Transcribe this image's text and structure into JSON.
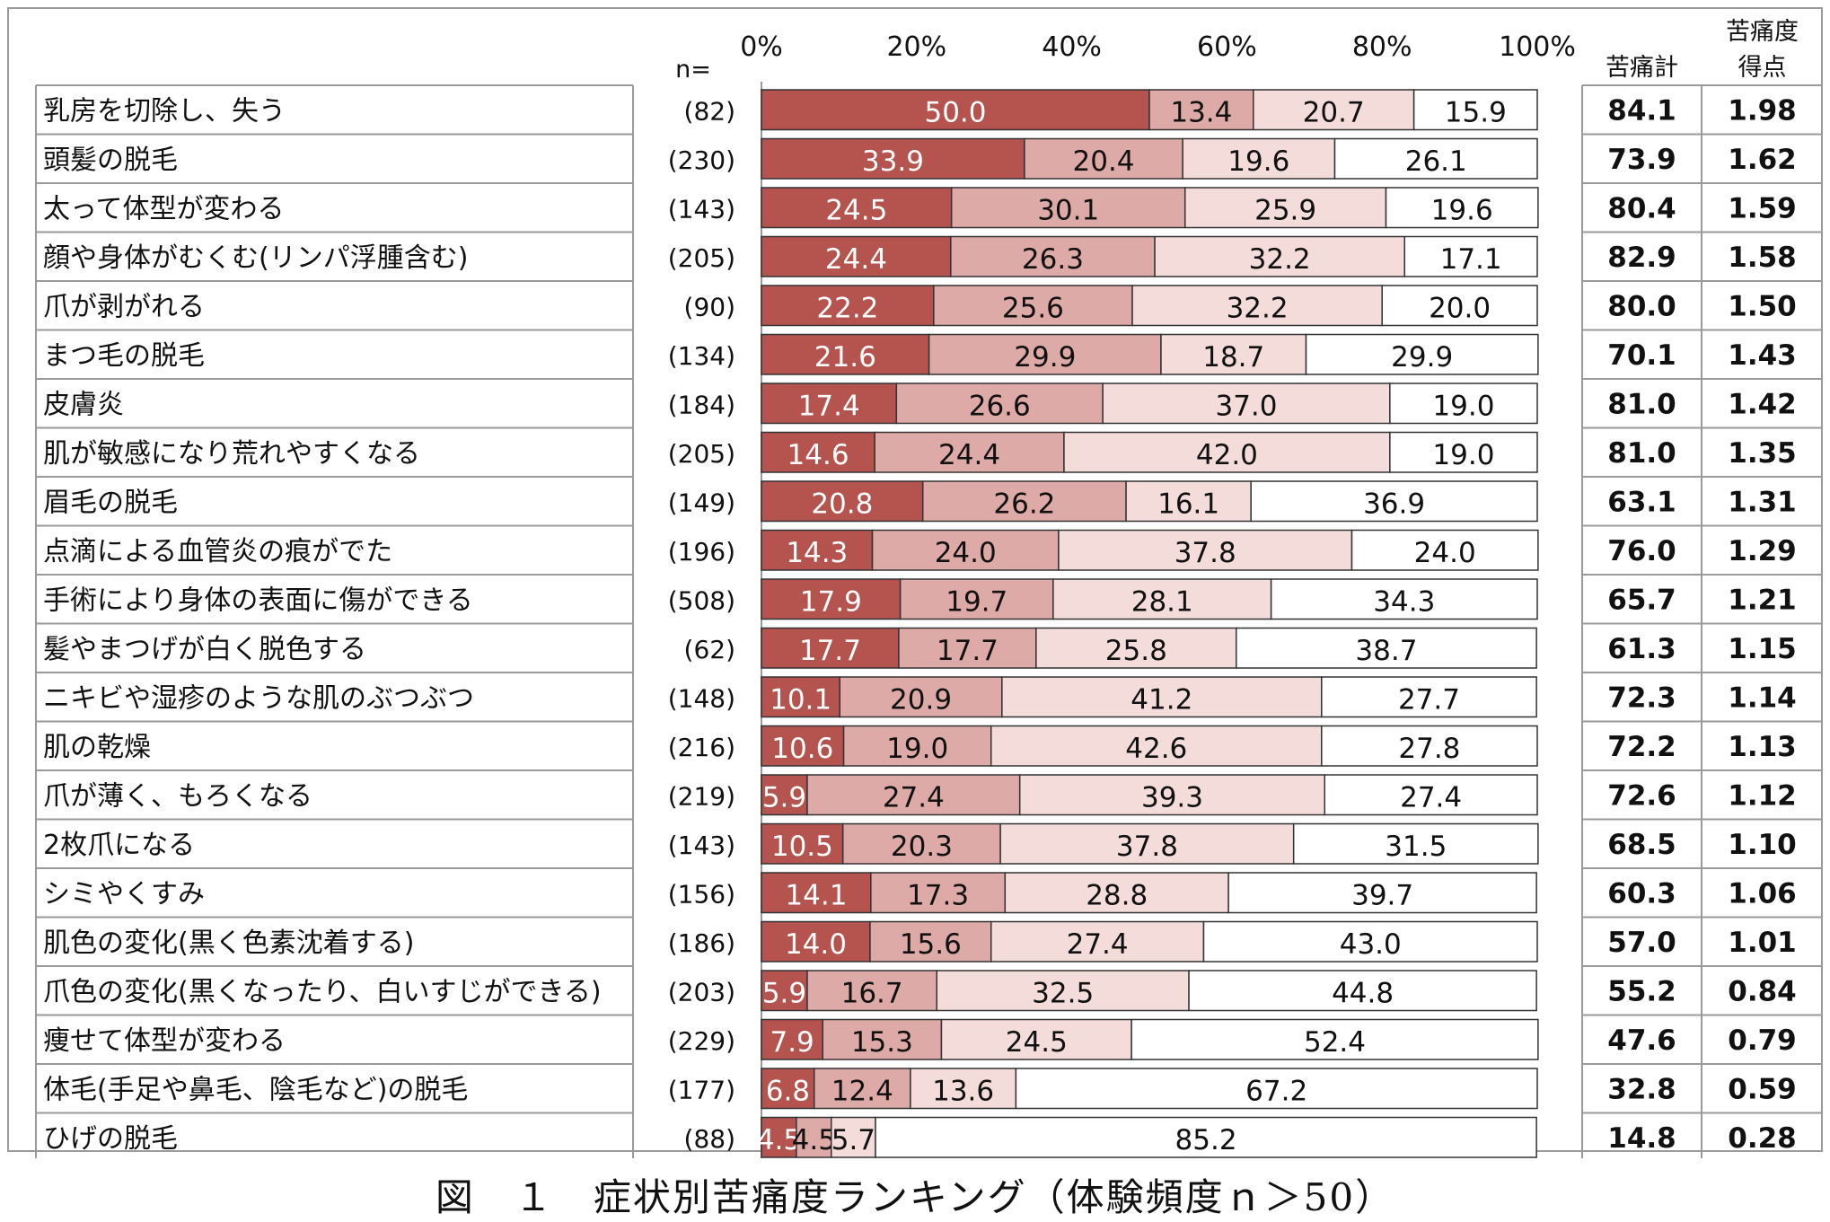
{
  "chart_data": {
    "type": "stacked-bar-horizontal",
    "xlim": [
      0,
      100
    ],
    "ticks": [
      "0%",
      "20%",
      "40%",
      "60%",
      "80%",
      "100%"
    ],
    "n_header": "n=",
    "col_total_header": "苦痛計",
    "col_score_header_line1": "苦痛度",
    "col_score_header_line2": "得点",
    "series_colors": [
      "#b5534f",
      "#deaaa7",
      "#f3dcda",
      "#ffffff"
    ],
    "rows": [
      {
        "label": "乳房を切除し、失う",
        "n": "(82)",
        "values": [
          50.0,
          13.4,
          20.7,
          15.9
        ],
        "value_labels": [
          "50.0",
          "13.4",
          "20.7",
          "15.9"
        ],
        "total": "84.1",
        "score": "1.98"
      },
      {
        "label": "頭髪の脱毛",
        "n": "(230)",
        "values": [
          33.9,
          20.4,
          19.6,
          26.1
        ],
        "value_labels": [
          "33.9",
          "20.4",
          "19.6",
          "26.1"
        ],
        "total": "73.9",
        "score": "1.62"
      },
      {
        "label": "太って体型が変わる",
        "n": "(143)",
        "values": [
          24.5,
          30.1,
          25.9,
          19.6
        ],
        "value_labels": [
          "24.5",
          "30.1",
          "25.9",
          "19.6"
        ],
        "total": "80.4",
        "score": "1.59"
      },
      {
        "label": "顔や身体がむくむ(リンパ浮腫含む)",
        "n": "(205)",
        "values": [
          24.4,
          26.3,
          32.2,
          17.1
        ],
        "value_labels": [
          "24.4",
          "26.3",
          "32.2",
          "17.1"
        ],
        "total": "82.9",
        "score": "1.58"
      },
      {
        "label": "爪が剥がれる",
        "n": "(90)",
        "values": [
          22.2,
          25.6,
          32.2,
          20.0
        ],
        "value_labels": [
          "22.2",
          "25.6",
          "32.2",
          "20.0"
        ],
        "total": "80.0",
        "score": "1.50"
      },
      {
        "label": "まつ毛の脱毛",
        "n": "(134)",
        "values": [
          21.6,
          29.9,
          18.7,
          29.9
        ],
        "value_labels": [
          "21.6",
          "29.9",
          "18.7",
          "29.9"
        ],
        "total": "70.1",
        "score": "1.43"
      },
      {
        "label": "皮膚炎",
        "n": "(184)",
        "values": [
          17.4,
          26.6,
          37.0,
          19.0
        ],
        "value_labels": [
          "17.4",
          "26.6",
          "37.0",
          "19.0"
        ],
        "total": "81.0",
        "score": "1.42"
      },
      {
        "label": "肌が敏感になり荒れやすくなる",
        "n": "(205)",
        "values": [
          14.6,
          24.4,
          42.0,
          19.0
        ],
        "value_labels": [
          "14.6",
          "24.4",
          "42.0",
          "19.0"
        ],
        "total": "81.0",
        "score": "1.35"
      },
      {
        "label": "眉毛の脱毛",
        "n": "(149)",
        "values": [
          20.8,
          26.2,
          16.1,
          36.9
        ],
        "value_labels": [
          "20.8",
          "26.2",
          "16.1",
          "36.9"
        ],
        "total": "63.1",
        "score": "1.31"
      },
      {
        "label": "点滴による血管炎の痕がでた",
        "n": "(196)",
        "values": [
          14.3,
          24.0,
          37.8,
          24.0
        ],
        "value_labels": [
          "14.3",
          "24.0",
          "37.8",
          "24.0"
        ],
        "total": "76.0",
        "score": "1.29"
      },
      {
        "label": "手術により身体の表面に傷ができる",
        "n": "(508)",
        "values": [
          17.9,
          19.7,
          28.1,
          34.3
        ],
        "value_labels": [
          "17.9",
          "19.7",
          "28.1",
          "34.3"
        ],
        "total": "65.7",
        "score": "1.21"
      },
      {
        "label": "髪やまつげが白く脱色する",
        "n": "(62)",
        "values": [
          17.7,
          17.7,
          25.8,
          38.7
        ],
        "value_labels": [
          "17.7",
          "17.7",
          "25.8",
          "38.7"
        ],
        "total": "61.3",
        "score": "1.15"
      },
      {
        "label": "ニキビや湿疹のような肌のぶつぶつ",
        "n": "(148)",
        "values": [
          10.1,
          20.9,
          41.2,
          27.7
        ],
        "value_labels": [
          "10.1",
          "20.9",
          "41.2",
          "27.7"
        ],
        "total": "72.3",
        "score": "1.14"
      },
      {
        "label": "肌の乾燥",
        "n": "(216)",
        "values": [
          10.6,
          19.0,
          42.6,
          27.8
        ],
        "value_labels": [
          "10.6",
          "19.0",
          "42.6",
          "27.8"
        ],
        "total": "72.2",
        "score": "1.13"
      },
      {
        "label": "爪が薄く、もろくなる",
        "n": "(219)",
        "values": [
          5.9,
          27.4,
          39.3,
          27.4
        ],
        "value_labels": [
          "5.9",
          "27.4",
          "39.3",
          "27.4"
        ],
        "total": "72.6",
        "score": "1.12"
      },
      {
        "label": "2枚爪になる",
        "n": "(143)",
        "values": [
          10.5,
          20.3,
          37.8,
          31.5
        ],
        "value_labels": [
          "10.5",
          "20.3",
          "37.8",
          "31.5"
        ],
        "total": "68.5",
        "score": "1.10"
      },
      {
        "label": "シミやくすみ",
        "n": "(156)",
        "values": [
          14.1,
          17.3,
          28.8,
          39.7
        ],
        "value_labels": [
          "14.1",
          "17.3",
          "28.8",
          "39.7"
        ],
        "total": "60.3",
        "score": "1.06"
      },
      {
        "label": "肌色の変化(黒く色素沈着する)",
        "n": "(186)",
        "values": [
          14.0,
          15.6,
          27.4,
          43.0
        ],
        "value_labels": [
          "14.0",
          "15.6",
          "27.4",
          "43.0"
        ],
        "total": "57.0",
        "score": "1.01"
      },
      {
        "label": "爪色の変化(黒くなったり、白いすじができる)",
        "n": "(203)",
        "values": [
          5.9,
          16.7,
          32.5,
          44.8
        ],
        "value_labels": [
          "5.9",
          "16.7",
          "32.5",
          "44.8"
        ],
        "total": "55.2",
        "score": "0.84"
      },
      {
        "label": "痩せて体型が変わる",
        "n": "(229)",
        "values": [
          7.9,
          15.3,
          24.5,
          52.4
        ],
        "value_labels": [
          "7.9",
          "15.3",
          "24.5",
          "52.4"
        ],
        "total": "47.6",
        "score": "0.79"
      },
      {
        "label": "体毛(手足や鼻毛、陰毛など)の脱毛",
        "n": "(177)",
        "values": [
          6.8,
          12.4,
          13.6,
          67.2
        ],
        "value_labels": [
          "6.8",
          "12.4",
          "13.6",
          "67.2"
        ],
        "total": "32.8",
        "score": "0.59"
      },
      {
        "label": "ひげの脱毛",
        "n": "(88)",
        "values": [
          4.5,
          4.5,
          5.7,
          85.2
        ],
        "value_labels": [
          "4.5",
          "4.5",
          "5.7",
          "85.2"
        ],
        "total": "14.8",
        "score": "0.28"
      }
    ]
  },
  "caption": "図　１　症状別苦痛度ランキング（体験頻度ｎ＞50）"
}
